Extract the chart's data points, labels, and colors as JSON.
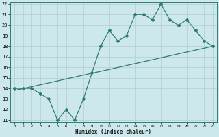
{
  "xlabel": "Humidex (Indice chaleur)",
  "x_values": [
    0,
    1,
    2,
    3,
    4,
    5,
    6,
    7,
    8,
    9,
    10,
    11,
    12,
    13,
    14,
    15,
    16,
    17,
    18,
    19,
    20,
    21,
    22,
    23
  ],
  "y_zigzag": [
    14,
    14,
    14,
    13.5,
    13,
    11,
    12,
    11,
    13,
    15.5,
    18,
    19.5,
    18.5,
    19,
    21,
    21,
    20.5,
    22,
    20.5,
    20,
    20.5,
    19.5,
    18.5,
    18
  ],
  "y_trend_start": 13.8,
  "y_trend_end": 18.0,
  "line_color": "#2e7d6e",
  "bg_color": "#cde8ec",
  "grid_color": "#aecdd4",
  "ylim": [
    11,
    22
  ],
  "xlim": [
    -0.5,
    23.5
  ],
  "yticks": [
    11,
    12,
    13,
    14,
    15,
    16,
    17,
    18,
    19,
    20,
    21,
    22
  ],
  "xticks": [
    0,
    1,
    2,
    3,
    4,
    5,
    6,
    7,
    8,
    9,
    10,
    11,
    12,
    13,
    14,
    15,
    16,
    17,
    18,
    19,
    20,
    21,
    22,
    23
  ]
}
